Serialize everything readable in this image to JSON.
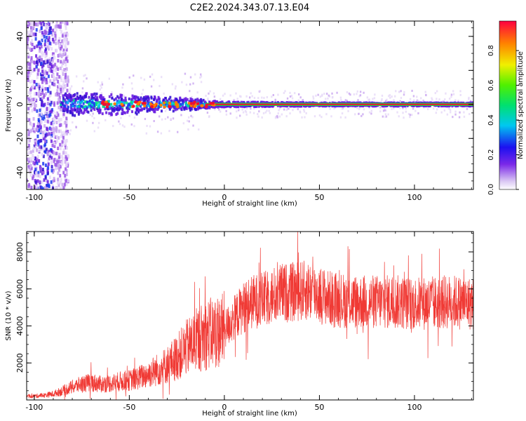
{
  "title": "C2E2.2024.343.07.13.E04",
  "colors": {
    "snr_line": "#f03a35",
    "dense_band": "#3a12c8",
    "axis": "#000000"
  },
  "chart_data": [
    {
      "type": "heatmap",
      "title": "C2E2.2024.343.07.13.E04",
      "xlabel": "Height of straight line (km)",
      "ylabel": "Frequency (Hz)",
      "xlim": [
        -104,
        131
      ],
      "ylim": [
        -50,
        49
      ],
      "xticks": [
        -100,
        -50,
        0,
        50,
        100
      ],
      "yticks": [
        -40,
        -20,
        0,
        20,
        40
      ],
      "colorbar": {
        "label": "Normalized spectral amplitude",
        "range": [
          0.0,
          0.97
        ],
        "ticks": [
          "0.0",
          "0.2",
          "0.4",
          "0.6",
          "0.8"
        ],
        "colormap": "rainbow (violet → blue → cyan → green → yellow → red)"
      },
      "description_points": {
        "diffuse_noise_region_x": [
          -104,
          -83
        ],
        "central_frequency_hz": 0,
        "band_halfwidth_hz": [
          {
            "x": -85,
            "halfwidth": 6
          },
          {
            "x": -50,
            "halfwidth": 5
          },
          {
            "x": -20,
            "halfwidth": 3
          },
          {
            "x": 0,
            "halfwidth": 1.5
          },
          {
            "x": 50,
            "halfwidth": 1
          },
          {
            "x": 131,
            "halfwidth": 1
          }
        ],
        "peak_amplitude_x": [
          -45,
          131
        ]
      }
    },
    {
      "type": "line",
      "xlabel": "Height of straight line (km)",
      "ylabel": "SNR (10 * v/v)",
      "xlim": [
        -104,
        131
      ],
      "ylim": [
        0,
        9100
      ],
      "xticks": [
        -100,
        -50,
        0,
        50,
        100
      ],
      "yticks": [
        2000,
        4000,
        6000,
        8000
      ],
      "series": [
        {
          "x": [
            -104,
            -95,
            -90,
            -85,
            -80,
            -75,
            -70,
            -65,
            -60,
            -55,
            -50,
            -45,
            -40,
            -35,
            -30,
            -25,
            -20,
            -15,
            -10,
            -5,
            0,
            5,
            10,
            15,
            20,
            25,
            30,
            35,
            40,
            45,
            50,
            55,
            60,
            70,
            80,
            90,
            100,
            110,
            120,
            131
          ],
          "y": [
            180,
            250,
            320,
            500,
            700,
            850,
            950,
            850,
            900,
            1000,
            1050,
            1200,
            1400,
            1650,
            1900,
            2300,
            2800,
            3200,
            3500,
            3650,
            3800,
            4400,
            5000,
            5300,
            5400,
            5600,
            5800,
            5800,
            5900,
            5900,
            5700,
            5500,
            5400,
            5300,
            5300,
            5300,
            5200,
            5250,
            5300,
            5200
          ]
        }
      ]
    }
  ]
}
